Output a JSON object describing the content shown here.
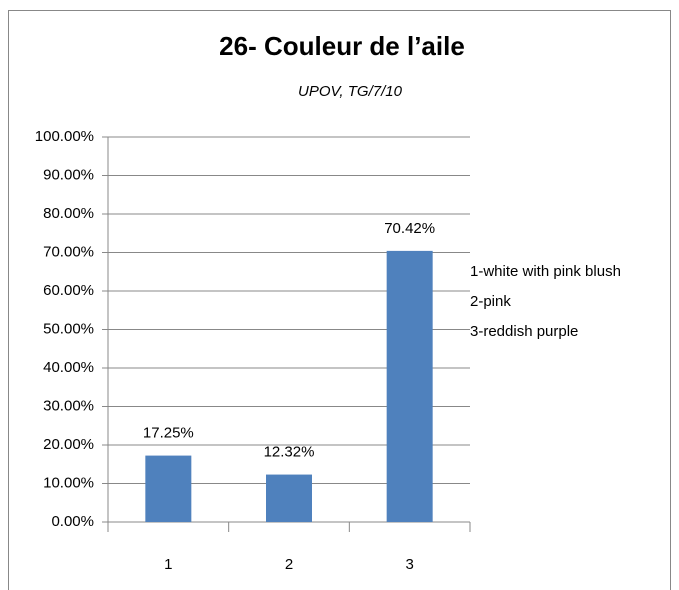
{
  "chart_data": {
    "type": "bar",
    "title": "26- Couleur de l’aile",
    "subtitle": "UPOV, TG/7/10",
    "categories": [
      "1",
      "2",
      "3"
    ],
    "values": [
      17.25,
      12.32,
      70.42
    ],
    "value_labels": [
      "17.25%",
      "12.32%",
      "70.42%"
    ],
    "color": "#4f81bd",
    "ylim": [
      0,
      100
    ],
    "yticks": [
      {
        "value": 0,
        "label": "0.00%"
      },
      {
        "value": 10,
        "label": "10.00%"
      },
      {
        "value": 20,
        "label": "20.00%"
      },
      {
        "value": 30,
        "label": "30.00%"
      },
      {
        "value": 40,
        "label": "40.00%"
      },
      {
        "value": 50,
        "label": "50.00%"
      },
      {
        "value": 60,
        "label": "60.00%"
      },
      {
        "value": 70,
        "label": "70.00%"
      },
      {
        "value": 80,
        "label": "80.00%"
      },
      {
        "value": 90,
        "label": "90.00%"
      },
      {
        "value": 100,
        "label": "100.00%"
      }
    ],
    "grid": true,
    "annotations": [
      "1-white with pink blush",
      "2-pink",
      "3-reddish purple"
    ]
  }
}
